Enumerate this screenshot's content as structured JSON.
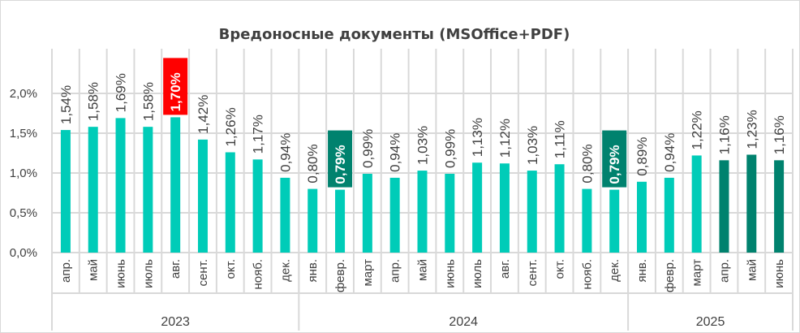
{
  "chart_data": {
    "type": "bar",
    "title": "Вредоносные документы (MSOffice+PDF)",
    "xlabel": "",
    "ylabel": "",
    "ylim": [
      0,
      2.0
    ],
    "yticks": [
      "0,0%",
      "0,5%",
      "1,0%",
      "1,5%",
      "2,0%"
    ],
    "grid": true,
    "years": [
      {
        "label": "2023",
        "count": 9
      },
      {
        "label": "2024",
        "count": 12
      },
      {
        "label": "2025",
        "count": 6
      }
    ],
    "categories": [
      "апр.",
      "май",
      "июнь",
      "июль",
      "авг.",
      "сент.",
      "окт.",
      "нояб.",
      "дек.",
      "янв.",
      "февр.",
      "март",
      "апр.",
      "май",
      "июнь",
      "июль",
      "авг.",
      "сент.",
      "окт.",
      "нояб.",
      "дек.",
      "янв.",
      "февр.",
      "март",
      "апр.",
      "май",
      "июнь"
    ],
    "values": [
      1.54,
      1.58,
      1.69,
      1.58,
      1.7,
      1.42,
      1.26,
      1.17,
      0.94,
      0.8,
      0.79,
      0.99,
      0.94,
      1.03,
      0.99,
      1.13,
      1.12,
      1.03,
      1.11,
      0.8,
      0.79,
      0.89,
      0.94,
      1.22,
      1.16,
      1.23,
      1.16
    ],
    "labels": [
      "1,54%",
      "1,58%",
      "1,69%",
      "1,58%",
      "1,70%",
      "1,42%",
      "1,26%",
      "1,17%",
      "0,94%",
      "0,80%",
      "0,79%",
      "0,99%",
      "0,94%",
      "1,03%",
      "0,99%",
      "1,13%",
      "1,12%",
      "1,03%",
      "1,11%",
      "0,80%",
      "0,79%",
      "0,89%",
      "0,94%",
      "1,22%",
      "1,16%",
      "1,23%",
      "1,16%"
    ],
    "bar_dark_indices": [
      24,
      25,
      26
    ],
    "label_highlights": [
      {
        "index": 4,
        "color": "#ff0000"
      },
      {
        "index": 10,
        "color": "#00826e"
      },
      {
        "index": 20,
        "color": "#00826e"
      }
    ],
    "colors": {
      "bar": "#00ccb8",
      "bar_dark": "#00826e",
      "grid": "#d9d9d9"
    }
  }
}
